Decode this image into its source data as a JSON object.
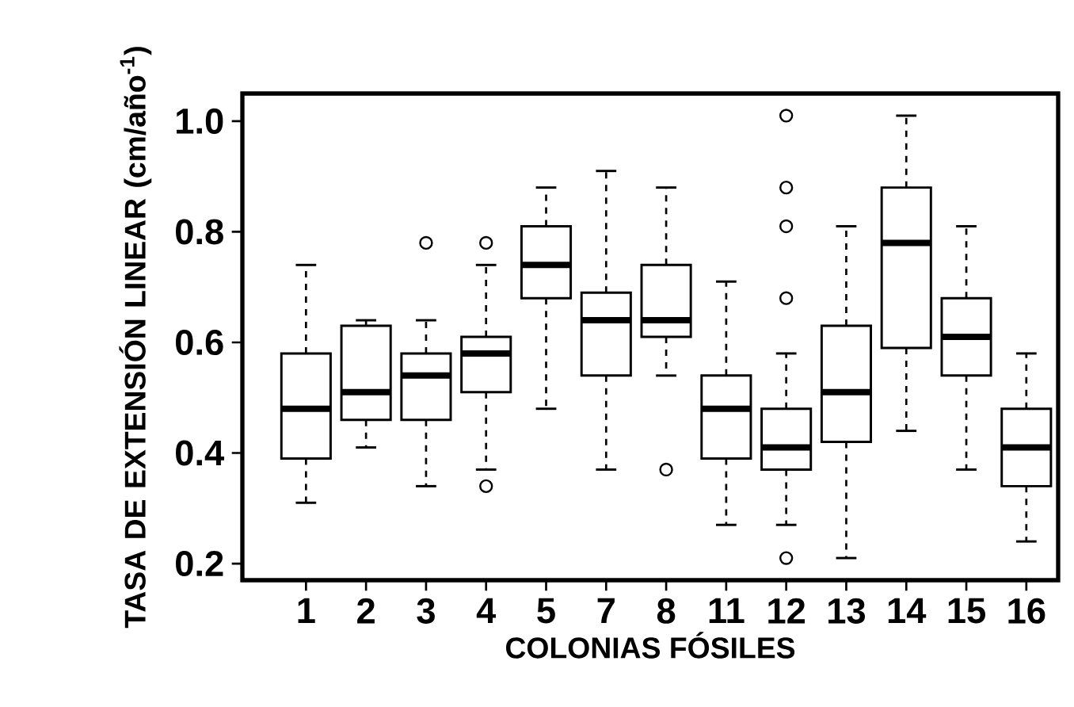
{
  "chart_data": {
    "type": "box",
    "xlabel": "COLONIAS FÓSILES",
    "ylabel": "TASA DE EXTENSIÓN LINEAR (cm/año$^{-1}$)",
    "categories": [
      "1",
      "2",
      "3",
      "4",
      "5",
      "7",
      "8",
      "11",
      "12",
      "13",
      "14",
      "15",
      "16"
    ],
    "ylim": [
      0.17,
      1.05
    ],
    "yticks": [
      {
        "value": 0.2,
        "label": "0.2"
      },
      {
        "value": 0.4,
        "label": "0.4"
      },
      {
        "value": 0.6,
        "label": "0.6"
      },
      {
        "value": 0.8,
        "label": "0.8"
      },
      {
        "value": 1.0,
        "label": "1.0"
      }
    ],
    "marker": "circle",
    "boxes": [
      {
        "low": 0.31,
        "q1": 0.39,
        "median": 0.48,
        "q3": 0.58,
        "high": 0.74
      },
      {
        "low": 0.41,
        "q1": 0.46,
        "median": 0.51,
        "q3": 0.63,
        "high": 0.64
      },
      {
        "low": 0.34,
        "q1": 0.46,
        "median": 0.54,
        "q3": 0.58,
        "high": 0.64,
        "outliers": [
          0.78
        ]
      },
      {
        "low": 0.37,
        "q1": 0.51,
        "median": 0.58,
        "q3": 0.61,
        "high": 0.74,
        "outliers": [
          0.78,
          0.34
        ]
      },
      {
        "low": 0.48,
        "q1": 0.68,
        "median": 0.74,
        "q3": 0.81,
        "high": 0.88
      },
      {
        "low": 0.37,
        "q1": 0.54,
        "median": 0.64,
        "q3": 0.69,
        "high": 0.91
      },
      {
        "low": 0.54,
        "q1": 0.61,
        "median": 0.64,
        "q3": 0.74,
        "high": 0.88,
        "outliers": [
          0.37
        ]
      },
      {
        "low": 0.27,
        "q1": 0.39,
        "median": 0.48,
        "q3": 0.54,
        "high": 0.71
      },
      {
        "low": 0.27,
        "q1": 0.37,
        "median": 0.41,
        "q3": 0.48,
        "high": 0.58,
        "outliers": [
          1.01,
          0.88,
          0.81,
          0.68,
          0.21
        ]
      },
      {
        "low": 0.21,
        "q1": 0.42,
        "median": 0.51,
        "q3": 0.63,
        "high": 0.81
      },
      {
        "low": 0.44,
        "q1": 0.59,
        "median": 0.78,
        "q3": 0.88,
        "high": 1.01
      },
      {
        "low": 0.37,
        "q1": 0.54,
        "median": 0.61,
        "q3": 0.68,
        "high": 0.81
      },
      {
        "low": 0.24,
        "q1": 0.34,
        "median": 0.41,
        "q3": 0.48,
        "high": 0.58
      }
    ]
  }
}
